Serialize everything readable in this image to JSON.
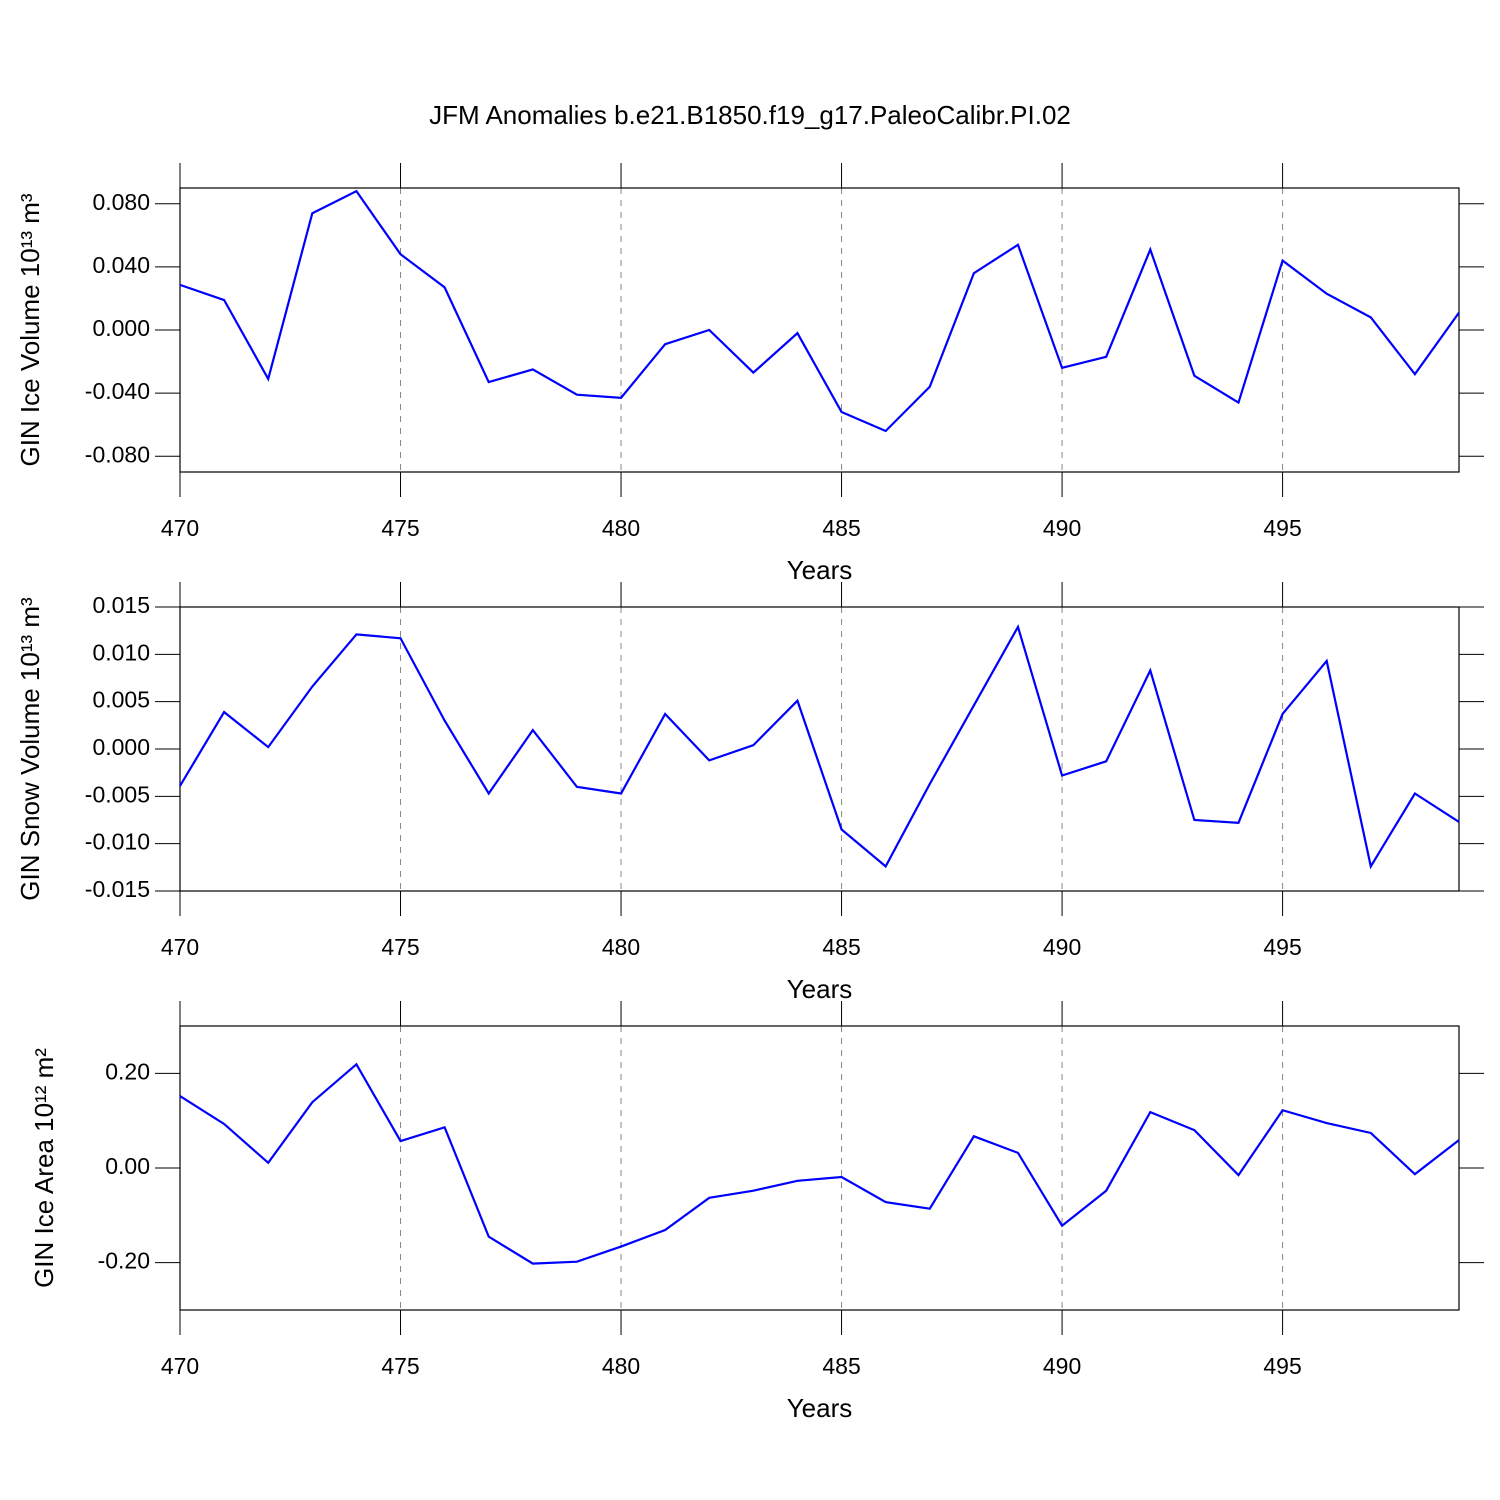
{
  "chart_data": [
    {
      "type": "line",
      "title": "JFM Anomalies b.e21.B1850.f19_g17.PaleoCalibr.PI.02",
      "xlabel": "Years",
      "ylabel": "GIN Ice Volume 10¹³ m³",
      "x": [
        470,
        471,
        472,
        473,
        474,
        475,
        476,
        477,
        478,
        479,
        480,
        481,
        482,
        483,
        484,
        485,
        486,
        487,
        488,
        489,
        490,
        491,
        492,
        493,
        494,
        495,
        496,
        497,
        498,
        499
      ],
      "series": [
        {
          "color": "#0000ff",
          "values": [
            0.0286,
            0.019,
            -0.031,
            0.074,
            0.088,
            0.048,
            0.027,
            -0.033,
            -0.025,
            -0.041,
            -0.043,
            -0.009,
            0.0,
            -0.027,
            -0.002,
            -0.052,
            -0.064,
            -0.036,
            0.036,
            0.054,
            -0.024,
            -0.017,
            0.051,
            -0.029,
            -0.046,
            0.044,
            0.023,
            0.008,
            -0.028,
            0.011
          ]
        }
      ],
      "xlim": [
        470,
        499
      ],
      "xticks": [
        470,
        475,
        480,
        485,
        490,
        495
      ],
      "ylim": [
        -0.09,
        0.09
      ],
      "yticks": [
        {
          "value": -0.08,
          "label": "-0.080"
        },
        {
          "value": -0.04,
          "label": "-0.040"
        },
        {
          "value": 0,
          "label": "0.000"
        },
        {
          "value": 0.04,
          "label": "0.040"
        },
        {
          "value": 0.08,
          "label": "0.080"
        }
      ],
      "grid": true
    },
    {
      "type": "line",
      "xlabel": "Years",
      "ylabel": "GIN Snow Volume 10¹³ m³",
      "x": [
        470,
        471,
        472,
        473,
        474,
        475,
        476,
        477,
        478,
        479,
        480,
        481,
        482,
        483,
        484,
        485,
        486,
        487,
        488,
        489,
        490,
        491,
        492,
        493,
        494,
        495,
        496,
        497,
        498,
        499
      ],
      "series": [
        {
          "color": "#0000ff",
          "values": [
            -0.0039,
            0.0039,
            0.0002,
            0.0066,
            0.0121,
            0.0117,
            0.003,
            -0.0047,
            0.002,
            -0.004,
            -0.0047,
            0.0037,
            -0.0012,
            0.0004,
            0.0051,
            -0.0085,
            -0.0124,
            -0.0037,
            0.0046,
            0.0129,
            -0.0028,
            -0.0013,
            0.0083,
            -0.0075,
            -0.0078,
            0.0037,
            0.0093,
            -0.0124,
            -0.0047,
            -0.0077
          ]
        }
      ],
      "xlim": [
        470,
        499
      ],
      "xticks": [
        470,
        475,
        480,
        485,
        490,
        495
      ],
      "ylim": [
        -0.015,
        0.015
      ],
      "yticks": [
        {
          "value": -0.015,
          "label": "-0.015"
        },
        {
          "value": -0.01,
          "label": "-0.010"
        },
        {
          "value": -0.005,
          "label": "-0.005"
        },
        {
          "value": 0,
          "label": "0.000"
        },
        {
          "value": 0.005,
          "label": "0.005"
        },
        {
          "value": 0.01,
          "label": "0.010"
        },
        {
          "value": 0.015,
          "label": "0.015"
        }
      ],
      "grid": true
    },
    {
      "type": "line",
      "xlabel": "Years",
      "ylabel": "GIN Ice Area 10¹² m²",
      "x": [
        470,
        471,
        472,
        473,
        474,
        475,
        476,
        477,
        478,
        479,
        480,
        481,
        482,
        483,
        484,
        485,
        486,
        487,
        488,
        489,
        490,
        491,
        492,
        493,
        494,
        495,
        496,
        497,
        498,
        499
      ],
      "series": [
        {
          "color": "#0000ff",
          "values": [
            0.152,
            0.093,
            0.011,
            0.139,
            0.219,
            0.057,
            0.086,
            -0.145,
            -0.202,
            -0.198,
            -0.166,
            -0.131,
            -0.063,
            -0.048,
            -0.027,
            -0.019,
            -0.072,
            -0.086,
            0.067,
            0.032,
            -0.122,
            -0.048,
            0.118,
            0.08,
            -0.015,
            0.122,
            0.095,
            0.074,
            -0.013,
            0.059
          ]
        }
      ],
      "xlim": [
        470,
        499
      ],
      "xticks": [
        470,
        475,
        480,
        485,
        490,
        495
      ],
      "ylim": [
        -0.3,
        0.3
      ],
      "yticks": [
        {
          "value": -0.2,
          "label": "-0.20"
        },
        {
          "value": 0,
          "label": "0.00"
        },
        {
          "value": 0.2,
          "label": "0.20"
        }
      ],
      "grid": true
    }
  ]
}
